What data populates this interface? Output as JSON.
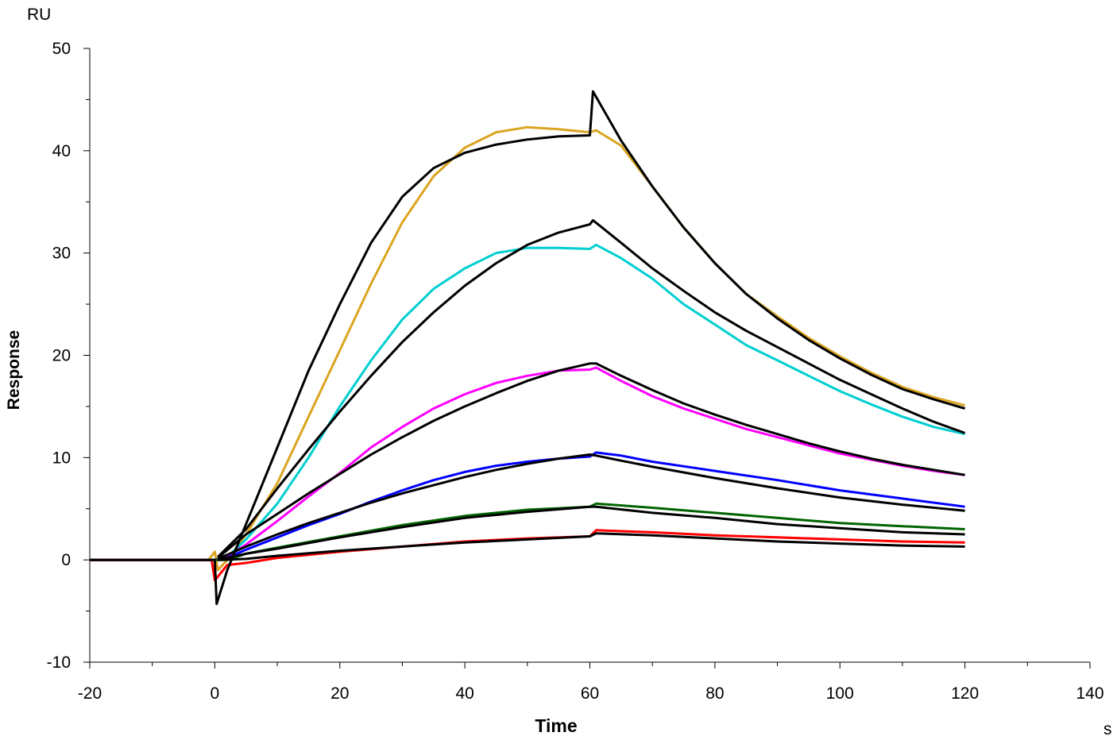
{
  "chart_data": {
    "type": "line",
    "title": "",
    "xlabel": "Time",
    "xunit": "s",
    "ylabel": "Response",
    "yunit": "RU",
    "xlim": [
      -20,
      140
    ],
    "ylim": [
      -10,
      50
    ],
    "xticks": [
      -20,
      0,
      20,
      40,
      60,
      80,
      100,
      120,
      140
    ],
    "yticks": [
      -10,
      0,
      10,
      20,
      30,
      40,
      50
    ],
    "grid": false,
    "legend": "none",
    "series": [
      {
        "color": "#DAA520",
        "points": [
          [
            -20,
            0
          ],
          [
            -1,
            0
          ],
          [
            0,
            0.8
          ],
          [
            0.5,
            -1
          ],
          [
            2,
            0
          ],
          [
            5,
            2.5
          ],
          [
            10,
            7.5
          ],
          [
            15,
            14
          ],
          [
            20,
            20.5
          ],
          [
            25,
            27
          ],
          [
            30,
            33
          ],
          [
            35,
            37.5
          ],
          [
            40,
            40.3
          ],
          [
            45,
            41.8
          ],
          [
            50,
            42.3
          ],
          [
            55,
            42.1
          ],
          [
            60,
            41.8
          ],
          [
            61,
            42
          ],
          [
            65,
            40.5
          ],
          [
            70,
            36.5
          ],
          [
            75,
            32.5
          ],
          [
            80,
            29
          ],
          [
            85,
            26
          ],
          [
            90,
            23.8
          ],
          [
            95,
            21.7
          ],
          [
            100,
            19.9
          ],
          [
            105,
            18.3
          ],
          [
            110,
            16.9
          ],
          [
            115,
            15.9
          ],
          [
            120,
            15.1
          ]
        ]
      },
      {
        "color": "#00CED1",
        "points": [
          [
            -20,
            0
          ],
          [
            0,
            0
          ],
          [
            2,
            0.3
          ],
          [
            5,
            2
          ],
          [
            10,
            5.5
          ],
          [
            15,
            10
          ],
          [
            20,
            15
          ],
          [
            25,
            19.5
          ],
          [
            30,
            23.5
          ],
          [
            35,
            26.5
          ],
          [
            40,
            28.5
          ],
          [
            45,
            30
          ],
          [
            50,
            30.5
          ],
          [
            55,
            30.5
          ],
          [
            60,
            30.4
          ],
          [
            61,
            30.8
          ],
          [
            65,
            29.5
          ],
          [
            70,
            27.5
          ],
          [
            75,
            25
          ],
          [
            80,
            23
          ],
          [
            85,
            21
          ],
          [
            90,
            19.5
          ],
          [
            95,
            18
          ],
          [
            100,
            16.5
          ],
          [
            105,
            15.2
          ],
          [
            110,
            14
          ],
          [
            115,
            13
          ],
          [
            120,
            12.3
          ]
        ]
      },
      {
        "color": "#FF00FF",
        "points": [
          [
            -20,
            0
          ],
          [
            0,
            0
          ],
          [
            2,
            0.3
          ],
          [
            5,
            1.5
          ],
          [
            10,
            3.8
          ],
          [
            15,
            6.2
          ],
          [
            20,
            8.5
          ],
          [
            25,
            11
          ],
          [
            30,
            13
          ],
          [
            35,
            14.8
          ],
          [
            40,
            16.2
          ],
          [
            45,
            17.3
          ],
          [
            50,
            18
          ],
          [
            55,
            18.5
          ],
          [
            60,
            18.6
          ],
          [
            61,
            18.8
          ],
          [
            65,
            17.5
          ],
          [
            70,
            16
          ],
          [
            75,
            14.8
          ],
          [
            80,
            13.8
          ],
          [
            85,
            12.8
          ],
          [
            90,
            12
          ],
          [
            95,
            11.2
          ],
          [
            100,
            10.4
          ],
          [
            105,
            9.8
          ],
          [
            110,
            9.2
          ],
          [
            115,
            8.7
          ],
          [
            120,
            8.3
          ]
        ]
      },
      {
        "color": "#0000FF",
        "points": [
          [
            -20,
            0
          ],
          [
            0,
            0
          ],
          [
            2,
            0.2
          ],
          [
            5,
            1
          ],
          [
            10,
            2.2
          ],
          [
            15,
            3.4
          ],
          [
            20,
            4.5
          ],
          [
            25,
            5.7
          ],
          [
            30,
            6.8
          ],
          [
            35,
            7.8
          ],
          [
            40,
            8.6
          ],
          [
            45,
            9.2
          ],
          [
            50,
            9.6
          ],
          [
            55,
            9.9
          ],
          [
            60,
            10.1
          ],
          [
            61,
            10.5
          ],
          [
            65,
            10.2
          ],
          [
            70,
            9.6
          ],
          [
            80,
            8.7
          ],
          [
            90,
            7.8
          ],
          [
            100,
            6.8
          ],
          [
            110,
            6
          ],
          [
            120,
            5.2
          ]
        ]
      },
      {
        "color": "#006400",
        "points": [
          [
            -20,
            0
          ],
          [
            0,
            0
          ],
          [
            2,
            0
          ],
          [
            5,
            0.6
          ],
          [
            10,
            1.2
          ],
          [
            20,
            2.3
          ],
          [
            30,
            3.4
          ],
          [
            40,
            4.3
          ],
          [
            50,
            4.9
          ],
          [
            60,
            5.2
          ],
          [
            61,
            5.5
          ],
          [
            70,
            5.1
          ],
          [
            80,
            4.6
          ],
          [
            90,
            4.1
          ],
          [
            100,
            3.6
          ],
          [
            110,
            3.3
          ],
          [
            120,
            3.0
          ]
        ]
      },
      {
        "color": "#FF0000",
        "points": [
          [
            -20,
            0
          ],
          [
            -0.5,
            0
          ],
          [
            0,
            -2
          ],
          [
            2,
            -0.5
          ],
          [
            5,
            -0.3
          ],
          [
            10,
            0.2
          ],
          [
            20,
            0.8
          ],
          [
            30,
            1.3
          ],
          [
            40,
            1.8
          ],
          [
            50,
            2.1
          ],
          [
            60,
            2.3
          ],
          [
            61,
            2.9
          ],
          [
            70,
            2.7
          ],
          [
            80,
            2.4
          ],
          [
            90,
            2.2
          ],
          [
            100,
            2.0
          ],
          [
            110,
            1.8
          ],
          [
            120,
            1.7
          ]
        ]
      },
      {
        "color": "#000000",
        "points": [
          [
            -20,
            0
          ],
          [
            0,
            0
          ],
          [
            0.3,
            -4.3
          ],
          [
            2,
            -1
          ],
          [
            5,
            3.5
          ],
          [
            10,
            11
          ],
          [
            15,
            18.5
          ],
          [
            20,
            25
          ],
          [
            25,
            31
          ],
          [
            30,
            35.5
          ],
          [
            35,
            38.3
          ],
          [
            40,
            39.8
          ],
          [
            45,
            40.6
          ],
          [
            50,
            41.1
          ],
          [
            55,
            41.4
          ],
          [
            60,
            41.5
          ],
          [
            60.5,
            45.8
          ],
          [
            65,
            41
          ],
          [
            70,
            36.5
          ],
          [
            75,
            32.5
          ],
          [
            80,
            29
          ],
          [
            85,
            26
          ],
          [
            90,
            23.6
          ],
          [
            95,
            21.5
          ],
          [
            100,
            19.7
          ],
          [
            105,
            18.1
          ],
          [
            110,
            16.7
          ],
          [
            115,
            15.7
          ],
          [
            120,
            14.8
          ]
        ]
      },
      {
        "color": "#000000",
        "points": [
          [
            0.5,
            0.3
          ],
          [
            5,
            3
          ],
          [
            10,
            7
          ],
          [
            15,
            10.8
          ],
          [
            20,
            14.5
          ],
          [
            25,
            18
          ],
          [
            30,
            21.3
          ],
          [
            35,
            24.2
          ],
          [
            40,
            26.8
          ],
          [
            45,
            29
          ],
          [
            50,
            30.8
          ],
          [
            55,
            32
          ],
          [
            60,
            32.8
          ],
          [
            60.5,
            33.2
          ],
          [
            65,
            31
          ],
          [
            70,
            28.5
          ],
          [
            75,
            26.3
          ],
          [
            80,
            24.2
          ],
          [
            85,
            22.4
          ],
          [
            90,
            20.8
          ],
          [
            95,
            19.2
          ],
          [
            100,
            17.6
          ],
          [
            105,
            16.2
          ],
          [
            110,
            14.8
          ],
          [
            115,
            13.5
          ],
          [
            120,
            12.4
          ]
        ]
      },
      {
        "color": "#000000",
        "points": [
          [
            0.5,
            0.2
          ],
          [
            5,
            2.5
          ],
          [
            10,
            4.5
          ],
          [
            15,
            6.5
          ],
          [
            20,
            8.4
          ],
          [
            25,
            10.3
          ],
          [
            30,
            12
          ],
          [
            35,
            13.6
          ],
          [
            40,
            15
          ],
          [
            45,
            16.3
          ],
          [
            50,
            17.5
          ],
          [
            55,
            18.5
          ],
          [
            60,
            19.2
          ],
          [
            61,
            19.2
          ],
          [
            65,
            18
          ],
          [
            70,
            16.6
          ],
          [
            75,
            15.3
          ],
          [
            80,
            14.2
          ],
          [
            85,
            13.2
          ],
          [
            90,
            12.3
          ],
          [
            95,
            11.4
          ],
          [
            100,
            10.6
          ],
          [
            105,
            9.9
          ],
          [
            110,
            9.3
          ],
          [
            115,
            8.8
          ],
          [
            120,
            8.3
          ]
        ]
      },
      {
        "color": "#000000",
        "points": [
          [
            0.5,
            0.1
          ],
          [
            5,
            1.3
          ],
          [
            10,
            2.5
          ],
          [
            15,
            3.6
          ],
          [
            20,
            4.6
          ],
          [
            25,
            5.6
          ],
          [
            30,
            6.5
          ],
          [
            35,
            7.3
          ],
          [
            40,
            8.1
          ],
          [
            45,
            8.8
          ],
          [
            50,
            9.4
          ],
          [
            55,
            9.9
          ],
          [
            60,
            10.3
          ],
          [
            61,
            10.2
          ],
          [
            65,
            9.7
          ],
          [
            70,
            9.1
          ],
          [
            80,
            8
          ],
          [
            90,
            7
          ],
          [
            100,
            6.1
          ],
          [
            110,
            5.4
          ],
          [
            120,
            4.8
          ]
        ]
      },
      {
        "color": "#000000",
        "points": [
          [
            0.5,
            0
          ],
          [
            5,
            0.6
          ],
          [
            10,
            1.1
          ],
          [
            20,
            2.2
          ],
          [
            30,
            3.2
          ],
          [
            40,
            4.1
          ],
          [
            50,
            4.7
          ],
          [
            60,
            5.2
          ],
          [
            61,
            5.2
          ],
          [
            70,
            4.6
          ],
          [
            80,
            4.1
          ],
          [
            90,
            3.5
          ],
          [
            100,
            3.1
          ],
          [
            110,
            2.7
          ],
          [
            120,
            2.5
          ]
        ]
      },
      {
        "color": "#000000",
        "points": [
          [
            0.5,
            0
          ],
          [
            5,
            0.1
          ],
          [
            10,
            0.4
          ],
          [
            20,
            0.9
          ],
          [
            30,
            1.3
          ],
          [
            40,
            1.7
          ],
          [
            50,
            2.0
          ],
          [
            60,
            2.3
          ],
          [
            61,
            2.6
          ],
          [
            70,
            2.4
          ],
          [
            80,
            2.1
          ],
          [
            90,
            1.8
          ],
          [
            100,
            1.6
          ],
          [
            110,
            1.4
          ],
          [
            120,
            1.3
          ]
        ]
      }
    ]
  }
}
